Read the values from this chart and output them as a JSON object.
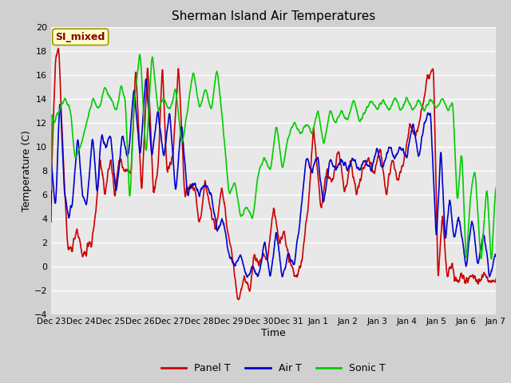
{
  "title": "Sherman Island Air Temperatures",
  "xlabel": "Time",
  "ylabel": "Temperature (C)",
  "ylim": [
    -4,
    20
  ],
  "yticks": [
    -4,
    -2,
    0,
    2,
    4,
    6,
    8,
    10,
    12,
    14,
    16,
    18,
    20
  ],
  "xtick_labels": [
    "Dec 23",
    "Dec 24",
    "Dec 25",
    "Dec 26",
    "Dec 27",
    "Dec 28",
    "Dec 29",
    "Dec 30",
    "Dec 31",
    "Jan 1",
    "Jan 2",
    "Jan 3",
    "Jan 4",
    "Jan 5",
    "Jan 6",
    "Jan 7"
  ],
  "legend_labels": [
    "Panel T",
    "Air T",
    "Sonic T"
  ],
  "legend_colors": [
    "#cc0000",
    "#0000cc",
    "#00cc00"
  ],
  "annotation_text": "SI_mixed",
  "annotation_color": "#8b0000",
  "annotation_bg": "#ffffcc",
  "panel_color": "#cc0000",
  "air_color": "#0000cc",
  "sonic_color": "#00cc00",
  "plot_bg_color": "#e8e8e8",
  "outer_bg_color": "#d0d0d0",
  "grid_color": "#ffffff",
  "linewidth": 1.2
}
